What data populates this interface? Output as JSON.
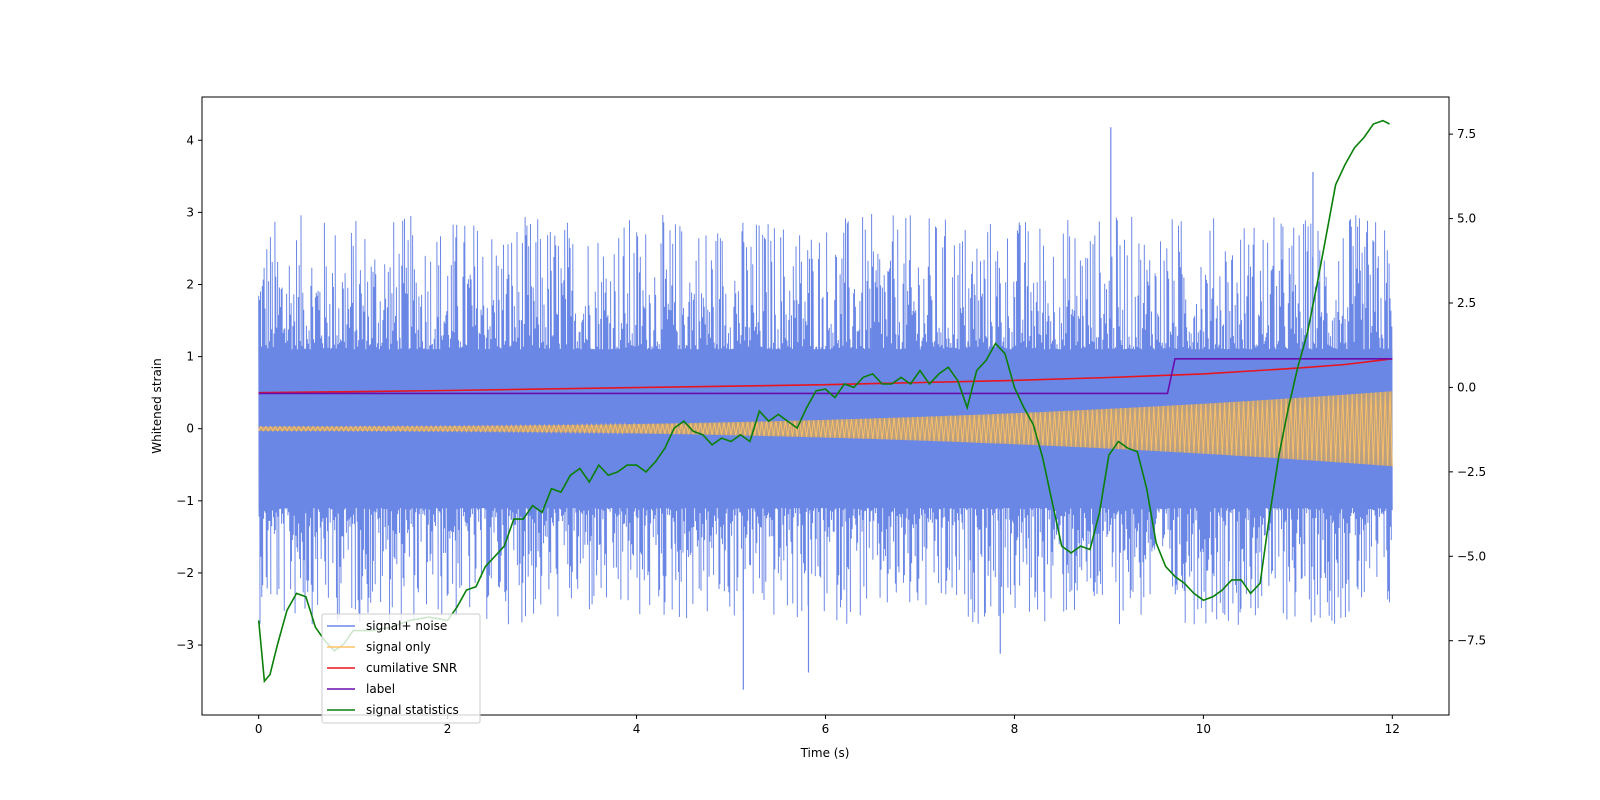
{
  "chart_data": {
    "type": "line",
    "title": "",
    "xlabel": "Time (s)",
    "ylabel": "Whitened strain",
    "xlim": [
      -0.6,
      12.6
    ],
    "ylim": [
      -3.97,
      4.6
    ],
    "y2lim": [
      -9.7,
      8.6
    ],
    "x_ticks": [
      0,
      2,
      4,
      6,
      8,
      10,
      12
    ],
    "x_tick_labels": [
      "0",
      "2",
      "4",
      "6",
      "8",
      "10",
      "12"
    ],
    "y_ticks": [
      -3,
      -2,
      -1,
      0,
      1,
      2,
      3,
      4
    ],
    "y_tick_labels": [
      "−3",
      "−2",
      "−1",
      "0",
      "1",
      "2",
      "3",
      "4"
    ],
    "y2_ticks": [
      -7.5,
      -5.0,
      -2.5,
      0.0,
      2.5,
      5.0,
      7.5
    ],
    "y2_tick_labels": [
      "−7.5",
      "−5.0",
      "−2.5",
      "0.0",
      "2.5",
      "5.0",
      "7.5"
    ],
    "legend_position": "lower-left",
    "legend": [
      {
        "label": "signal+ noise",
        "color": "#6b87e6"
      },
      {
        "label": "signal only",
        "color": "#ffc266"
      },
      {
        "label": "cumilative SNR",
        "color": "#e8141e"
      },
      {
        "label": "label",
        "color": "#6a0dad"
      },
      {
        "label": "signal statistics",
        "color": "#0a800a"
      }
    ],
    "series": [
      {
        "name": "signal+ noise",
        "axis": "left",
        "kind": "noise",
        "x_range": [
          0,
          12
        ],
        "band": [
          -1.1,
          1.1
        ],
        "upper_peaks_to": 4.18,
        "lower_peaks_to": -3.62,
        "peaks": [
          {
            "x": 9.02,
            "y": 4.18
          },
          {
            "x": 5.13,
            "y": -3.62
          },
          {
            "x": 5.82,
            "y": -3.38
          },
          {
            "x": 11.16,
            "y": 3.56
          },
          {
            "x": 7.85,
            "y": -3.12
          }
        ]
      },
      {
        "name": "signal only",
        "axis": "left",
        "kind": "chirp",
        "x_range": [
          0,
          12
        ],
        "amplitude_start": 0.03,
        "amplitude_end": 0.52
      },
      {
        "name": "cumilative SNR",
        "axis": "left",
        "x": [
          0,
          2,
          4,
          6,
          8,
          9,
          10,
          10.5,
          11,
          11.5,
          12
        ],
        "y": [
          0.5,
          0.53,
          0.57,
          0.61,
          0.67,
          0.71,
          0.76,
          0.8,
          0.84,
          0.89,
          0.97
        ]
      },
      {
        "name": "label",
        "axis": "left",
        "x": [
          0,
          9.62,
          9.7,
          12
        ],
        "y": [
          0.49,
          0.49,
          0.97,
          0.97
        ]
      },
      {
        "name": "signal statistics",
        "axis": "right",
        "x": [
          0,
          0.06,
          0.12,
          0.2,
          0.3,
          0.4,
          0.5,
          0.6,
          0.7,
          0.8,
          0.9,
          1.0,
          1.2,
          1.4,
          1.6,
          1.8,
          2.0,
          2.1,
          2.2,
          2.3,
          2.4,
          2.5,
          2.6,
          2.7,
          2.8,
          2.9,
          3.0,
          3.1,
          3.2,
          3.3,
          3.4,
          3.5,
          3.6,
          3.7,
          3.8,
          3.9,
          4.0,
          4.1,
          4.2,
          4.3,
          4.4,
          4.5,
          4.6,
          4.7,
          4.8,
          4.9,
          5.0,
          5.1,
          5.2,
          5.3,
          5.4,
          5.5,
          5.6,
          5.7,
          5.8,
          5.9,
          6.0,
          6.1,
          6.2,
          6.3,
          6.4,
          6.5,
          6.6,
          6.7,
          6.8,
          6.9,
          7.0,
          7.1,
          7.2,
          7.3,
          7.4,
          7.5,
          7.6,
          7.7,
          7.8,
          7.9,
          8.0,
          8.1,
          8.2,
          8.3,
          8.4,
          8.5,
          8.6,
          8.7,
          8.8,
          8.9,
          9.0,
          9.1,
          9.2,
          9.3,
          9.4,
          9.5,
          9.6,
          9.7,
          9.8,
          9.9,
          10.0,
          10.1,
          10.2,
          10.3,
          10.4,
          10.5,
          10.6,
          10.7,
          10.8,
          10.9,
          11.0,
          11.1,
          11.2,
          11.3,
          11.4,
          11.5,
          11.6,
          11.7,
          11.8,
          11.9,
          11.97
        ],
        "y": [
          -6.9,
          -8.7,
          -8.5,
          -7.6,
          -6.6,
          -6.1,
          -6.2,
          -7.1,
          -7.5,
          -7.8,
          -7.6,
          -7.2,
          -7.2,
          -7.1,
          -6.9,
          -6.8,
          -6.9,
          -6.5,
          -6.0,
          -5.9,
          -5.3,
          -5.0,
          -4.7,
          -3.9,
          -3.9,
          -3.5,
          -3.7,
          -3.0,
          -3.1,
          -2.6,
          -2.4,
          -2.8,
          -2.3,
          -2.6,
          -2.5,
          -2.3,
          -2.3,
          -2.5,
          -2.2,
          -1.8,
          -1.2,
          -1.0,
          -1.3,
          -1.4,
          -1.7,
          -1.5,
          -1.6,
          -1.4,
          -1.6,
          -0.7,
          -1.0,
          -0.8,
          -1.0,
          -1.2,
          -0.6,
          -0.1,
          -0.05,
          -0.3,
          0.1,
          0.0,
          0.3,
          0.4,
          0.1,
          0.1,
          0.3,
          0.1,
          0.5,
          0.1,
          0.4,
          0.6,
          0.2,
          -0.6,
          0.5,
          0.8,
          1.3,
          1.0,
          0.0,
          -0.6,
          -1.1,
          -2.1,
          -3.4,
          -4.7,
          -4.9,
          -4.7,
          -4.8,
          -3.7,
          -2.0,
          -1.6,
          -1.8,
          -1.9,
          -3.0,
          -4.6,
          -5.3,
          -5.6,
          -5.8,
          -6.1,
          -6.3,
          -6.2,
          -6.0,
          -5.7,
          -5.7,
          -6.1,
          -5.8,
          -3.8,
          -2.0,
          -0.6,
          0.6,
          1.6,
          3.0,
          4.5,
          6.0,
          6.6,
          7.1,
          7.4,
          7.8,
          7.9,
          7.8
        ]
      }
    ]
  }
}
